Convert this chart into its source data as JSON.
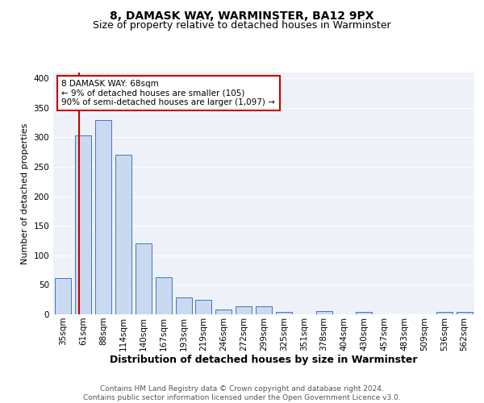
{
  "title": "8, DAMASK WAY, WARMINSTER, BA12 9PX",
  "subtitle": "Size of property relative to detached houses in Warminster",
  "xlabel": "Distribution of detached houses by size in Warminster",
  "ylabel": "Number of detached properties",
  "categories": [
    "35sqm",
    "61sqm",
    "88sqm",
    "114sqm",
    "140sqm",
    "167sqm",
    "193sqm",
    "219sqm",
    "246sqm",
    "272sqm",
    "299sqm",
    "325sqm",
    "351sqm",
    "378sqm",
    "404sqm",
    "430sqm",
    "457sqm",
    "483sqm",
    "509sqm",
    "536sqm",
    "562sqm"
  ],
  "values": [
    62,
    303,
    330,
    271,
    120,
    63,
    29,
    25,
    8,
    13,
    13,
    4,
    0,
    5,
    0,
    4,
    0,
    0,
    0,
    4,
    4
  ],
  "bar_color": "#c9d9ef",
  "bar_edge_color": "#4472c4",
  "bg_color": "#eef2f8",
  "grid_color": "#ffffff",
  "property_line_color": "#cc0000",
  "annotation_text": "8 DAMASK WAY: 68sqm\n← 9% of detached houses are smaller (105)\n90% of semi-detached houses are larger (1,097) →",
  "annotation_box_color": "#ffffff",
  "annotation_box_edge": "#cc0000",
  "footer": "Contains HM Land Registry data © Crown copyright and database right 2024.\nContains public sector information licensed under the Open Government Licence v3.0.",
  "ylim": [
    0,
    410
  ],
  "yticks": [
    0,
    50,
    100,
    150,
    200,
    250,
    300,
    350,
    400
  ],
  "title_fontsize": 10,
  "subtitle_fontsize": 9,
  "xlabel_fontsize": 9,
  "ylabel_fontsize": 8,
  "tick_fontsize": 7.5,
  "annotation_fontsize": 7.5,
  "footer_fontsize": 6.5
}
